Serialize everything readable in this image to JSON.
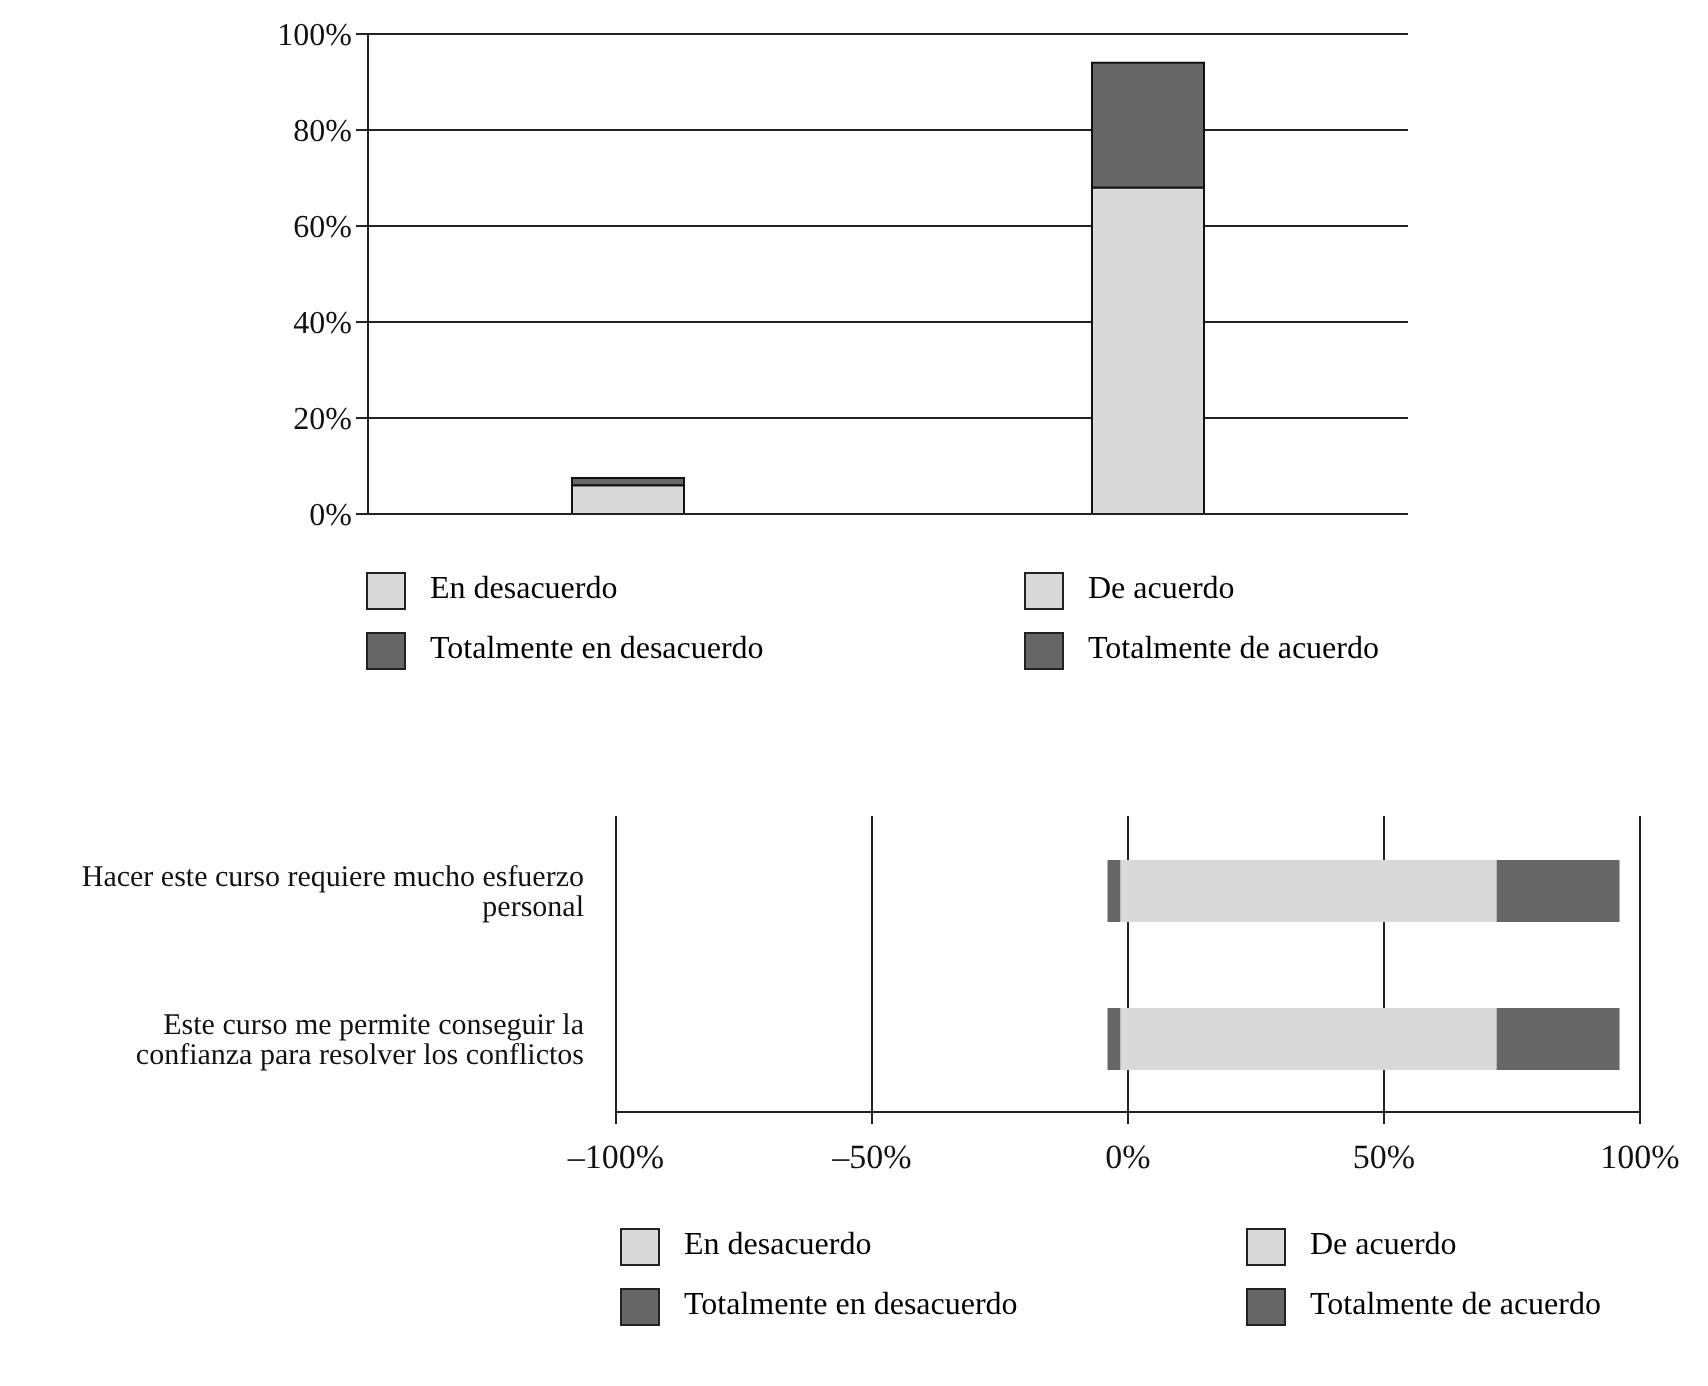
{
  "chart_data": [
    {
      "type": "bar",
      "stacked": true,
      "categories": [
        null,
        null
      ],
      "series": [
        {
          "name": "En desacuerdo",
          "color": "#d9d9d9",
          "values": [
            6,
            null
          ]
        },
        {
          "name": "Totalmente en desacuerdo",
          "color": "#666666",
          "values": [
            1.5,
            null
          ]
        },
        {
          "name": "De acuerdo",
          "color": "#d9d9d9",
          "values": [
            null,
            68
          ]
        },
        {
          "name": "Totalmente de acuerdo",
          "color": "#666666",
          "values": [
            null,
            26
          ]
        }
      ],
      "ylim": [
        0,
        100
      ],
      "yticks": [
        {
          "value": 0,
          "label": "0%"
        },
        {
          "value": 20,
          "label": "20%"
        },
        {
          "value": 40,
          "label": "40%"
        },
        {
          "value": 60,
          "label": "60%"
        },
        {
          "value": 80,
          "label": "80%"
        },
        {
          "value": 100,
          "label": "100%"
        }
      ],
      "grid": "y",
      "legend": "bottom"
    },
    {
      "type": "bar",
      "stacked": true,
      "orientation": "horizontal",
      "categories": [
        "Hacer este curso requiere mucho esfuerzo personal",
        "Este curso me permite conseguir la confianza para resolver los conflictos"
      ],
      "series": [
        {
          "name": "En desacuerdo",
          "color": "#d9d9d9",
          "values": [
            -1.5,
            -1.5
          ]
        },
        {
          "name": "Totalmente en desacuerdo",
          "color": "#666666",
          "values": [
            -2.5,
            -2.5
          ]
        },
        {
          "name": "De acuerdo",
          "color": "#d9d9d9",
          "values": [
            72,
            72
          ]
        },
        {
          "name": "Totalmente de acuerdo",
          "color": "#666666",
          "values": [
            24,
            24
          ]
        }
      ],
      "xlim": [
        -100,
        100
      ],
      "xticks": [
        {
          "value": -100,
          "label": "–100%"
        },
        {
          "value": -50,
          "label": "–50%"
        },
        {
          "value": 0,
          "label": "0%"
        },
        {
          "value": 50,
          "label": "50%"
        },
        {
          "value": 100,
          "label": "100%"
        }
      ],
      "grid": "x",
      "legend": "bottom"
    }
  ]
}
